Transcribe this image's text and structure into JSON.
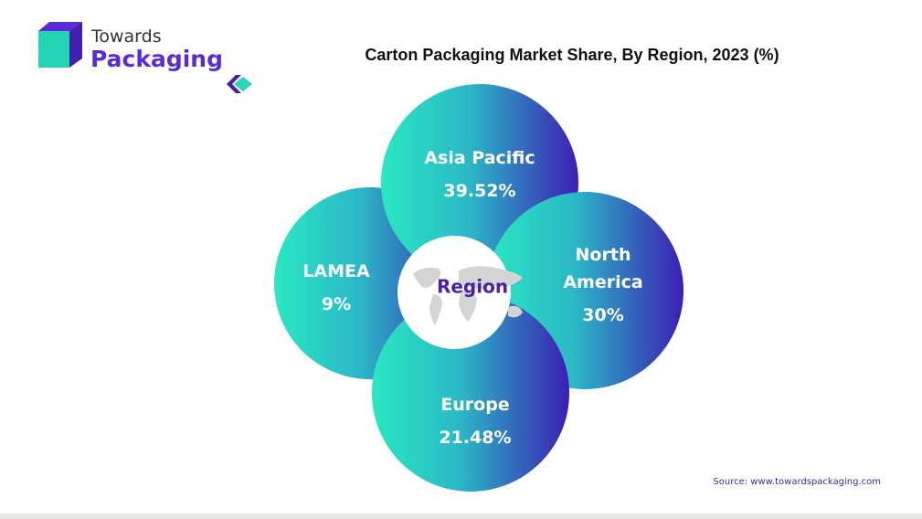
{
  "header": {
    "brand_top": "Towards",
    "brand_bottom": "Packaging",
    "title": "Carton Packaging Market Share, By Region, 2023 (%)"
  },
  "nodes": [
    {
      "label": "LAMEA",
      "value": "9%"
    },
    {
      "label": "Asia Pacific",
      "value": "39.52%"
    },
    {
      "label": "North America",
      "value": "30%"
    },
    {
      "label": "Europe",
      "value": "21.48%"
    }
  ],
  "center": {
    "label": "Region"
  },
  "source": "Source: www.towardspackaging.com"
}
